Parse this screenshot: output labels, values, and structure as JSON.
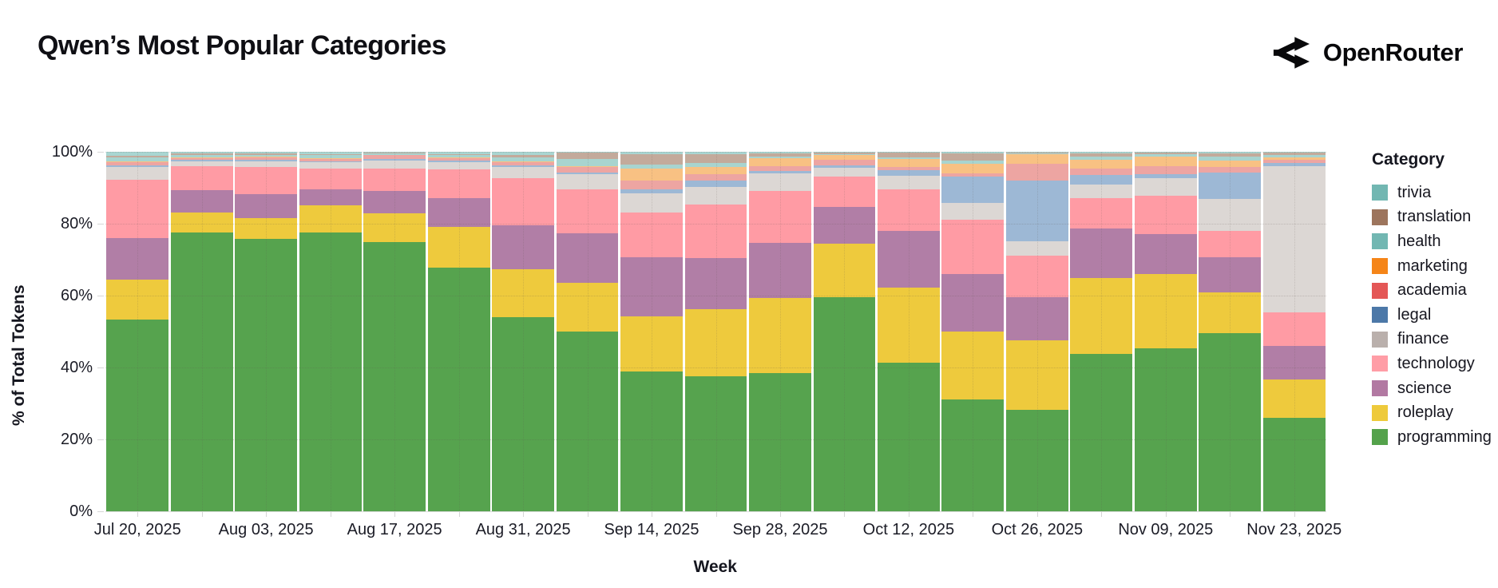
{
  "page": {
    "background": "#ffffff"
  },
  "header": {
    "title": "Qwen’s Most Popular Categories",
    "brand": {
      "name": "OpenRouter",
      "icon": "openrouter-fork-icon"
    }
  },
  "chart_data": {
    "type": "bar",
    "stacked": true,
    "normalized": true,
    "title": "Qwen’s Most Popular Categories",
    "xlabel": "Week",
    "ylabel": "% of Total Tokens",
    "ylim": [
      0,
      100
    ],
    "grid": true,
    "y_tick_labels": [
      "0%",
      "20%",
      "40%",
      "60%",
      "80%",
      "100%"
    ],
    "x_tick_labels": [
      "Jul 20, 2025",
      "Aug 03, 2025",
      "Aug 17, 2025",
      "Aug 31, 2025",
      "Sep 14, 2025",
      "Sep 28, 2025",
      "Oct 12, 2025",
      "Oct 26, 2025",
      "Nov 09, 2025",
      "Nov 23, 2025"
    ],
    "categories": [
      "Jul 20, 2025",
      "Jul 27, 2025",
      "Aug 03, 2025",
      "Aug 10, 2025",
      "Aug 17, 2025",
      "Aug 24, 2025",
      "Aug 31, 2025",
      "Sep 07, 2025",
      "Sep 14, 2025",
      "Sep 21, 2025",
      "Sep 28, 2025",
      "Oct 05, 2025",
      "Oct 12, 2025",
      "Oct 19, 2025",
      "Oct 26, 2025",
      "Nov 02, 2025",
      "Nov 09, 2025",
      "Nov 16, 2025",
      "Nov 23, 2025"
    ],
    "legend": {
      "title": "Category",
      "position": "right",
      "order_top_to_bottom": [
        "trivia",
        "translation",
        "health",
        "marketing",
        "academia",
        "legal",
        "finance",
        "technology",
        "science",
        "roleplay",
        "programming"
      ]
    },
    "series": [
      {
        "name": "programming",
        "color": "#54a24b",
        "fill": "#56a34e",
        "values": [
          53.3,
          77.6,
          75.7,
          77.6,
          74.9,
          67.7,
          53.9,
          50.0,
          38.9,
          37.6,
          38.4,
          59.6,
          41.3,
          31.0,
          28.1,
          43.7,
          45.3,
          49.5,
          25.9
        ]
      },
      {
        "name": "roleplay",
        "color": "#eeca3b",
        "fill": "#eeca3d",
        "values": [
          11.1,
          5.5,
          5.8,
          7.6,
          7.9,
          11.4,
          13.4,
          13.6,
          15.2,
          18.7,
          21.0,
          14.8,
          20.8,
          19.0,
          19.5,
          21.1,
          20.6,
          11.4,
          10.8
        ]
      },
      {
        "name": "science",
        "color": "#b279a2",
        "fill": "#b17ea6",
        "values": [
          11.7,
          6.3,
          6.6,
          4.4,
          6.2,
          7.9,
          12.3,
          13.8,
          16.6,
          14.2,
          15.2,
          10.2,
          15.8,
          15.9,
          11.9,
          13.9,
          11.3,
          9.8,
          9.2
        ]
      },
      {
        "name": "technology",
        "color": "#ff9da6",
        "fill": "#ff9ba4",
        "values": [
          16.1,
          6.5,
          7.6,
          5.7,
          6.4,
          8.0,
          13.0,
          12.1,
          12.5,
          14.8,
          14.4,
          8.4,
          11.6,
          15.3,
          11.6,
          8.3,
          10.6,
          7.2,
          9.5
        ]
      },
      {
        "name": "finance",
        "color": "#bab0ac",
        "fill": "#dcd7d4",
        "values": [
          3.6,
          1.5,
          1.7,
          1.7,
          2.2,
          2.2,
          3.1,
          4.2,
          5.3,
          4.9,
          4.9,
          2.6,
          3.8,
          4.6,
          4.1,
          3.9,
          4.9,
          8.9,
          40.5
        ]
      },
      {
        "name": "legal",
        "color": "#4c78a8",
        "fill": "#9db8d5",
        "values": [
          0.4,
          0.3,
          0.3,
          0.4,
          0.4,
          0.4,
          0.6,
          0.5,
          1.0,
          1.8,
          0.8,
          0.6,
          1.6,
          7.2,
          16.7,
          2.7,
          1.1,
          7.4,
          1.0
        ]
      },
      {
        "name": "academia",
        "color": "#e45756",
        "fill": "#eda5a2",
        "values": [
          1.0,
          0.6,
          0.7,
          0.7,
          1.0,
          0.6,
          0.8,
          1.5,
          2.6,
          1.7,
          1.3,
          1.6,
          0.8,
          1.1,
          4.8,
          1.7,
          2.1,
          1.5,
          0.8
        ]
      },
      {
        "name": "marketing",
        "color": "#f58518",
        "fill": "#f8c183",
        "values": [
          0.2,
          0.2,
          0.2,
          0.2,
          0.2,
          0.2,
          0.2,
          0.2,
          3.2,
          2.0,
          2.2,
          1.2,
          2.4,
          2.6,
          2.6,
          2.5,
          2.7,
          1.9,
          0.7
        ]
      },
      {
        "name": "health",
        "color": "#72b7b2",
        "fill": "#a8d4cf",
        "values": [
          1.0,
          0.6,
          0.6,
          0.7,
          0.4,
          0.8,
          1.2,
          2.2,
          1.1,
          1.2,
          0.5,
          0.4,
          0.3,
          0.8,
          0.3,
          0.9,
          0.7,
          1.1,
          0.8
        ]
      },
      {
        "name": "translation",
        "color": "#9d755d",
        "fill": "#c3aa9b",
        "values": [
          0.5,
          0.4,
          0.4,
          0.4,
          0.2,
          0.2,
          0.7,
          1.6,
          3.0,
          2.4,
          0.9,
          0.3,
          1.4,
          2.0,
          0.2,
          0.8,
          0.4,
          0.8,
          0.5
        ]
      },
      {
        "name": "trivia",
        "color": "#72b7b2",
        "fill": "#a9d6d2",
        "values": [
          1.1,
          0.5,
          0.4,
          0.6,
          0.2,
          0.6,
          0.8,
          0.3,
          0.6,
          0.7,
          0.4,
          0.3,
          0.2,
          0.5,
          0.2,
          0.5,
          0.3,
          0.5,
          0.3
        ]
      }
    ]
  }
}
